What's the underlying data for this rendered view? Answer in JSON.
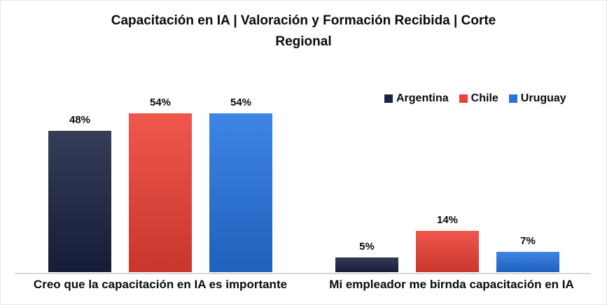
{
  "title": {
    "lines": [
      "Capacitación en IA | Valoración y Formación Recibida | Corte",
      "Regional"
    ],
    "full": "Capacitación en IA | Valoración y Formación Recibida | Corte Regional"
  },
  "chart_data": {
    "type": "bar",
    "title": "Capacitación en IA | Valoración y Formación Recibida | Corte Regional",
    "categories": [
      "Creo que la capacitación en IA es importante",
      "Mi empleador me birnda capacitación en IA"
    ],
    "series": [
      {
        "name": "Argentina",
        "color": "#1a2242",
        "values": [
          48,
          5
        ],
        "value_labels": [
          "48%",
          "5%"
        ]
      },
      {
        "name": "Chile",
        "color": "#ee4034",
        "values": [
          54,
          14
        ],
        "value_labels": [
          "54%",
          "14%"
        ]
      },
      {
        "name": "Uruguay",
        "color": "#2474e0",
        "values": [
          54,
          7
        ],
        "value_labels": [
          "54%",
          "7%"
        ]
      }
    ],
    "unit": "%",
    "ylim": [
      0,
      69
    ],
    "grid": false,
    "legend_position": "top-right",
    "axis_line_color": "#d8d8d8",
    "background_color": "#ffffff"
  }
}
